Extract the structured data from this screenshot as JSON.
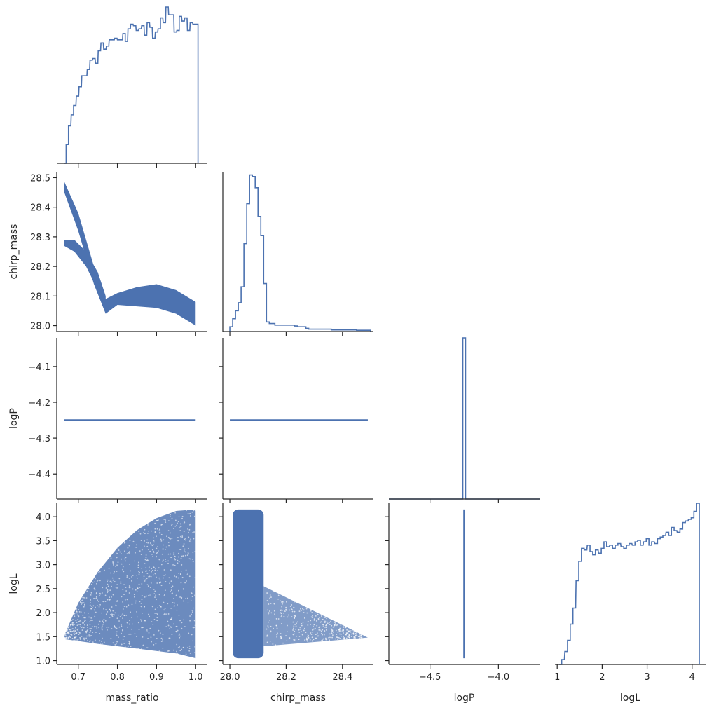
{
  "figure": {
    "line_color": "#4c72b0",
    "axis_color": "#262626"
  },
  "chart_data": [
    {
      "type": "histogram",
      "variable": "mass_ratio",
      "xlim": [
        0.645,
        1.03
      ],
      "ylim": [
        0,
        1.0
      ],
      "bins": [
        [
          0.663,
          0.0
        ],
        [
          0.669,
          0.12
        ],
        [
          0.675,
          0.24
        ],
        [
          0.682,
          0.31
        ],
        [
          0.688,
          0.37
        ],
        [
          0.695,
          0.43
        ],
        [
          0.702,
          0.49
        ],
        [
          0.709,
          0.56
        ],
        [
          0.716,
          0.56
        ],
        [
          0.723,
          0.6
        ],
        [
          0.73,
          0.66
        ],
        [
          0.737,
          0.67
        ],
        [
          0.744,
          0.64
        ],
        [
          0.751,
          0.72
        ],
        [
          0.758,
          0.77
        ],
        [
          0.765,
          0.73
        ],
        [
          0.772,
          0.75
        ],
        [
          0.779,
          0.79
        ],
        [
          0.786,
          0.79
        ],
        [
          0.793,
          0.8
        ],
        [
          0.8,
          0.79
        ],
        [
          0.807,
          0.79
        ],
        [
          0.814,
          0.83
        ],
        [
          0.82,
          0.78
        ],
        [
          0.827,
          0.86
        ],
        [
          0.834,
          0.89
        ],
        [
          0.841,
          0.88
        ],
        [
          0.848,
          0.85
        ],
        [
          0.855,
          0.86
        ],
        [
          0.862,
          0.88
        ],
        [
          0.869,
          0.82
        ],
        [
          0.876,
          0.9
        ],
        [
          0.883,
          0.87
        ],
        [
          0.89,
          0.8
        ],
        [
          0.897,
          0.84
        ],
        [
          0.904,
          0.86
        ],
        [
          0.91,
          0.93
        ],
        [
          0.917,
          0.9
        ],
        [
          0.924,
          1.0
        ],
        [
          0.931,
          0.95
        ],
        [
          0.938,
          0.95
        ],
        [
          0.945,
          0.84
        ],
        [
          0.952,
          0.85
        ],
        [
          0.958,
          0.94
        ],
        [
          0.965,
          0.91
        ],
        [
          0.972,
          0.93
        ],
        [
          0.979,
          0.85
        ],
        [
          0.986,
          0.9
        ],
        [
          0.993,
          0.89
        ],
        [
          1.0,
          0.89
        ]
      ],
      "xticks": [
        0.7,
        0.8,
        0.9,
        1.0
      ]
    },
    {
      "type": "scatter",
      "x_variable": "mass_ratio",
      "y_variable": "chirp_mass",
      "xlim": [
        0.645,
        1.03
      ],
      "ylim": [
        27.98,
        28.52
      ],
      "ylabel": "chirp_mass",
      "yticks": [
        28.0,
        28.1,
        28.2,
        28.3,
        28.4,
        28.5
      ],
      "ytick_labels": [
        "28.0",
        "28.1",
        "28.2",
        "28.3",
        "28.4",
        "28.5"
      ],
      "xticks": [
        0.7,
        0.8,
        0.9,
        1.0
      ],
      "bands": [
        {
          "lower": [
            [
              0.663,
              28.455
            ],
            [
              0.7,
              28.32
            ],
            [
              0.74,
              28.14
            ],
            [
              0.77,
              28.04
            ],
            [
              0.8,
              28.07
            ],
            [
              0.85,
              28.065
            ],
            [
              0.9,
              28.06
            ],
            [
              0.95,
              28.04
            ],
            [
              1.0,
              28.0
            ]
          ],
          "upper": [
            [
              0.663,
              28.49
            ],
            [
              0.7,
              28.38
            ],
            [
              0.74,
              28.2
            ],
            [
              0.77,
              28.09
            ],
            [
              0.8,
              28.11
            ],
            [
              0.85,
              28.13
            ],
            [
              0.9,
              28.14
            ],
            [
              0.95,
              28.12
            ],
            [
              1.0,
              28.08
            ]
          ]
        },
        {
          "lower": [
            [
              0.663,
              28.27
            ],
            [
              0.69,
              28.25
            ],
            [
              0.72,
              28.2
            ],
            [
              0.75,
              28.12
            ],
            [
              0.77,
              28.06
            ]
          ],
          "upper": [
            [
              0.663,
              28.29
            ],
            [
              0.69,
              28.29
            ],
            [
              0.72,
              28.25
            ],
            [
              0.75,
              28.18
            ],
            [
              0.77,
              28.1
            ]
          ]
        }
      ]
    },
    {
      "type": "histogram",
      "variable": "chirp_mass",
      "xlim": [
        27.975,
        28.51
      ],
      "ylim": [
        0,
        1.0
      ],
      "bins": [
        [
          28.0,
          0.03
        ],
        [
          28.01,
          0.08
        ],
        [
          28.02,
          0.13
        ],
        [
          28.03,
          0.18
        ],
        [
          28.04,
          0.28
        ],
        [
          28.05,
          0.55
        ],
        [
          28.06,
          0.8
        ],
        [
          28.07,
          0.98
        ],
        [
          28.08,
          0.97
        ],
        [
          28.09,
          0.9
        ],
        [
          28.1,
          0.72
        ],
        [
          28.11,
          0.6
        ],
        [
          28.12,
          0.3
        ],
        [
          28.13,
          0.06
        ],
        [
          28.14,
          0.05
        ],
        [
          28.15,
          0.05
        ],
        [
          28.16,
          0.04
        ],
        [
          28.17,
          0.04
        ],
        [
          28.18,
          0.04
        ],
        [
          28.19,
          0.04
        ],
        [
          28.2,
          0.04
        ],
        [
          28.21,
          0.04
        ],
        [
          28.22,
          0.04
        ],
        [
          28.23,
          0.035
        ],
        [
          28.24,
          0.03
        ],
        [
          28.25,
          0.03
        ],
        [
          28.26,
          0.03
        ],
        [
          28.27,
          0.02
        ],
        [
          28.28,
          0.015
        ],
        [
          28.29,
          0.015
        ],
        [
          28.3,
          0.015
        ],
        [
          28.31,
          0.015
        ],
        [
          28.32,
          0.015
        ],
        [
          28.33,
          0.015
        ],
        [
          28.34,
          0.015
        ],
        [
          28.35,
          0.015
        ],
        [
          28.36,
          0.01
        ],
        [
          28.37,
          0.01
        ],
        [
          28.38,
          0.01
        ],
        [
          28.39,
          0.01
        ],
        [
          28.4,
          0.01
        ],
        [
          28.41,
          0.01
        ],
        [
          28.42,
          0.01
        ],
        [
          28.43,
          0.01
        ],
        [
          28.44,
          0.01
        ],
        [
          28.45,
          0.008
        ],
        [
          28.46,
          0.008
        ],
        [
          28.47,
          0.008
        ],
        [
          28.48,
          0.008
        ],
        [
          28.49,
          0.008
        ]
      ],
      "xticks": [
        28.0,
        28.2,
        28.4
      ]
    },
    {
      "type": "scatter",
      "x_variable": "mass_ratio",
      "y_variable": "logP",
      "xlim": [
        0.645,
        1.03
      ],
      "ylim": [
        -4.47,
        -4.02
      ],
      "ylabel": "logP",
      "yticks": [
        -4.4,
        -4.3,
        -4.2,
        -4.1
      ],
      "ytick_labels": [
        "−4.4",
        "−4.3",
        "−4.2",
        "−4.1"
      ],
      "xticks": [
        0.7,
        0.8,
        0.9,
        1.0
      ],
      "line": {
        "x": [
          0.663,
          1.0
        ],
        "y": -4.25
      }
    },
    {
      "type": "scatter",
      "x_variable": "chirp_mass",
      "y_variable": "logP",
      "xlim": [
        27.975,
        28.51
      ],
      "ylim": [
        -4.47,
        -4.02
      ],
      "xticks": [
        28.0,
        28.2,
        28.4
      ],
      "line": {
        "x": [
          28.0,
          28.49
        ],
        "y": -4.25
      }
    },
    {
      "type": "histogram",
      "variable": "logP",
      "xlim": [
        -4.8,
        -3.7
      ],
      "ylim": [
        0,
        1.0
      ],
      "spike": {
        "x0": -4.26,
        "x1": -4.24,
        "height": 1.0
      },
      "xticks": [
        -4.5,
        -4.0
      ]
    },
    {
      "type": "scatter",
      "x_variable": "mass_ratio",
      "y_variable": "logL",
      "xlim": [
        0.645,
        1.03
      ],
      "ylim": [
        0.92,
        4.28
      ],
      "ylabel": "logL",
      "xlabel": "mass_ratio",
      "yticks": [
        1.0,
        1.5,
        2.0,
        2.5,
        3.0,
        3.5,
        4.0
      ],
      "ytick_labels": [
        "1.0",
        "1.5",
        "2.0",
        "2.5",
        "3.0",
        "3.5",
        "4.0"
      ],
      "xticks": [
        0.7,
        0.8,
        0.9,
        1.0
      ],
      "xtick_labels": [
        "0.7",
        "0.8",
        "0.9",
        "1.0"
      ],
      "region_upper": [
        [
          0.663,
          1.5
        ],
        [
          0.7,
          2.2
        ],
        [
          0.75,
          2.85
        ],
        [
          0.8,
          3.35
        ],
        [
          0.85,
          3.72
        ],
        [
          0.9,
          3.97
        ],
        [
          0.95,
          4.12
        ],
        [
          1.0,
          4.15
        ]
      ],
      "region_lower": [
        [
          0.663,
          1.45
        ],
        [
          0.75,
          1.35
        ],
        [
          0.85,
          1.25
        ],
        [
          0.95,
          1.15
        ],
        [
          1.0,
          1.05
        ]
      ]
    },
    {
      "type": "scatter",
      "x_variable": "chirp_mass",
      "y_variable": "logL",
      "xlim": [
        27.975,
        28.51
      ],
      "ylim": [
        0.92,
        4.28
      ],
      "xlabel": "chirp_mass",
      "xticks": [
        28.0,
        28.2,
        28.4
      ],
      "xtick_labels": [
        "28.0",
        "28.2",
        "28.4"
      ],
      "core": {
        "x": [
          28.01,
          28.12
        ],
        "y": [
          1.05,
          4.15
        ]
      },
      "wedge": [
        [
          28.12,
          2.55
        ],
        [
          28.49,
          1.48
        ],
        [
          28.12,
          1.3
        ]
      ]
    },
    {
      "type": "scatter",
      "x_variable": "logP",
      "y_variable": "logL",
      "xlim": [
        -4.8,
        -3.7
      ],
      "ylim": [
        0.92,
        4.28
      ],
      "xlabel": "logP",
      "xticks": [
        -4.5,
        -4.0
      ],
      "xtick_labels": [
        "−4.5",
        "−4.0"
      ],
      "line": {
        "x": -4.25,
        "y": [
          1.05,
          4.15
        ]
      }
    },
    {
      "type": "histogram",
      "variable": "logL",
      "xlim": [
        0.95,
        4.3
      ],
      "ylim": [
        0,
        1.0
      ],
      "xlabel": "logL",
      "xticks": [
        1,
        2,
        3,
        4
      ],
      "xtick_labels": [
        "1",
        "2",
        "3",
        "4"
      ],
      "bins": [
        [
          1.04,
          0.0
        ],
        [
          1.1,
          0.03
        ],
        [
          1.17,
          0.08
        ],
        [
          1.23,
          0.15
        ],
        [
          1.29,
          0.25
        ],
        [
          1.35,
          0.35
        ],
        [
          1.42,
          0.52
        ],
        [
          1.48,
          0.64
        ],
        [
          1.54,
          0.72
        ],
        [
          1.6,
          0.71
        ],
        [
          1.67,
          0.74
        ],
        [
          1.73,
          0.7
        ],
        [
          1.79,
          0.68
        ],
        [
          1.85,
          0.71
        ],
        [
          1.92,
          0.69
        ],
        [
          1.98,
          0.72
        ],
        [
          2.04,
          0.76
        ],
        [
          2.1,
          0.73
        ],
        [
          2.17,
          0.74
        ],
        [
          2.23,
          0.72
        ],
        [
          2.29,
          0.74
        ],
        [
          2.35,
          0.75
        ],
        [
          2.42,
          0.73
        ],
        [
          2.48,
          0.72
        ],
        [
          2.54,
          0.74
        ],
        [
          2.6,
          0.75
        ],
        [
          2.67,
          0.74
        ],
        [
          2.73,
          0.76
        ],
        [
          2.79,
          0.77
        ],
        [
          2.85,
          0.74
        ],
        [
          2.92,
          0.76
        ],
        [
          2.98,
          0.78
        ],
        [
          3.04,
          0.74
        ],
        [
          3.1,
          0.76
        ],
        [
          3.17,
          0.75
        ],
        [
          3.23,
          0.78
        ],
        [
          3.29,
          0.79
        ],
        [
          3.35,
          0.8
        ],
        [
          3.42,
          0.82
        ],
        [
          3.48,
          0.8
        ],
        [
          3.54,
          0.85
        ],
        [
          3.6,
          0.83
        ],
        [
          3.67,
          0.82
        ],
        [
          3.73,
          0.84
        ],
        [
          3.79,
          0.88
        ],
        [
          3.85,
          0.89
        ],
        [
          3.92,
          0.9
        ],
        [
          3.98,
          0.91
        ],
        [
          4.04,
          0.95
        ],
        [
          4.1,
          1.0
        ]
      ]
    }
  ]
}
